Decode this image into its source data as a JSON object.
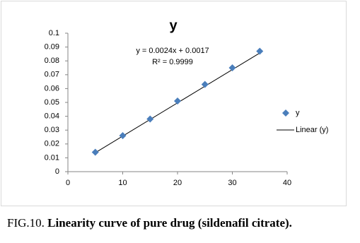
{
  "chart_data": {
    "type": "scatter",
    "title": "y",
    "series": [
      {
        "name": "y",
        "color": "#4a7ebb",
        "x": [
          5,
          10,
          15,
          20,
          25,
          30,
          35
        ],
        "values": [
          0.014,
          0.026,
          0.038,
          0.051,
          0.063,
          0.075,
          0.087
        ]
      }
    ],
    "trendline": {
      "name": "Linear (y)",
      "color": "#000000",
      "slope": 0.0024,
      "intercept": 0.0017
    },
    "annotations": [
      "y = 0.0024x + 0.0017",
      "R² = 0.9999"
    ],
    "xlim": [
      0,
      40
    ],
    "xticks": [
      0,
      10,
      20,
      30,
      40
    ],
    "ylim": [
      0,
      0.1
    ],
    "yticks": [
      0,
      0.01,
      0.02,
      0.03,
      0.04,
      0.05,
      0.06,
      0.07,
      0.08,
      0.09,
      0.1
    ],
    "grid": false,
    "legend": "right"
  },
  "caption": {
    "label": "FIG.10.",
    "text": "Linearity curve of pure drug (sildenafil citrate)."
  }
}
